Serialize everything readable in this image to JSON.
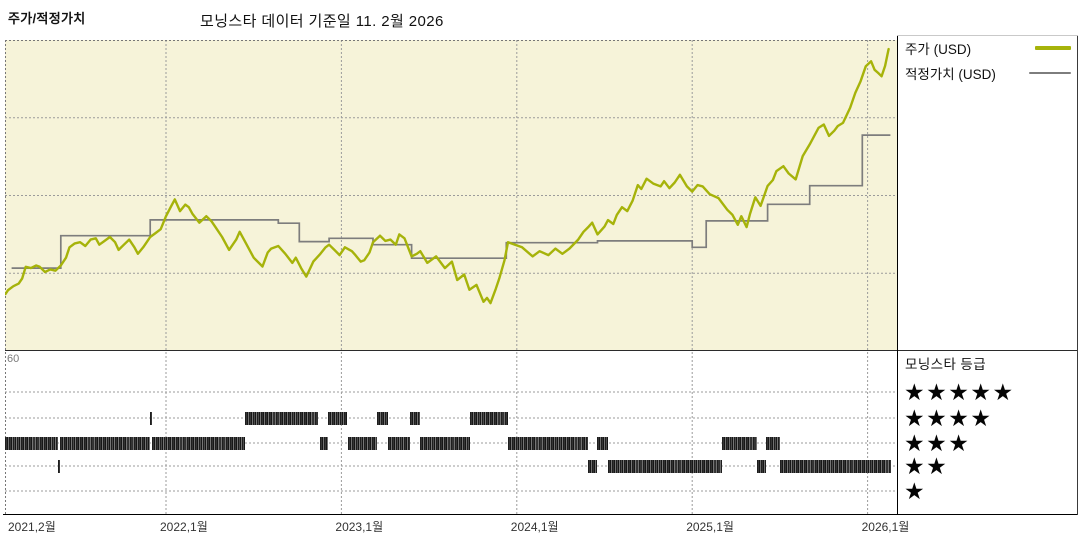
{
  "header": {
    "title": "주가/적정가치",
    "subtitle": "모닝스타 데이터 기준일 11. 2월 2026"
  },
  "legend": {
    "items": [
      {
        "label": "주가 (USD)"
      },
      {
        "label": "적정가치 (USD)"
      }
    ]
  },
  "rating_panel": {
    "title": "모닝스타 등급",
    "star_char": "★",
    "rows": [
      5,
      4,
      3,
      2,
      1
    ]
  },
  "colors": {
    "price": "#a6b30a",
    "fair_value": "#7d7d7d",
    "chart_bg": "#f6f3d9",
    "grid": "#9b9b9b",
    "border_dash": "#777777",
    "axis_text": "#7b7b7b",
    "tick_text": "#333333",
    "rating_tick": "#1e1e1e",
    "star": "#040404"
  },
  "chart_data": {
    "type": "line",
    "title": "주가/적정가치",
    "x_axis": {
      "ticks": [
        {
          "label": "2021,2월",
          "t": 2021.085
        },
        {
          "label": "2022,1월",
          "t": 2022.0
        },
        {
          "label": "2023,1월",
          "t": 2023.0
        },
        {
          "label": "2024,1월",
          "t": 2024.0
        },
        {
          "label": "2025,1월",
          "t": 2025.0
        },
        {
          "label": "2026,1월",
          "t": 2026.0
        }
      ]
    },
    "y_axis": {
      "ticks": [
        180,
        150,
        120,
        90,
        60
      ],
      "range": [
        60,
        180
      ]
    },
    "series": [
      {
        "name": "주가 (USD)",
        "type": "line",
        "points": [
          [
            2021.085,
            82
          ],
          [
            2021.1,
            83.5
          ],
          [
            2021.13,
            85
          ],
          [
            2021.16,
            86
          ],
          [
            2021.18,
            88
          ],
          [
            2021.2,
            92.5
          ],
          [
            2021.23,
            92
          ],
          [
            2021.26,
            93
          ],
          [
            2021.28,
            92.5
          ],
          [
            2021.31,
            90.5
          ],
          [
            2021.34,
            91.5
          ],
          [
            2021.37,
            91
          ],
          [
            2021.4,
            93
          ],
          [
            2021.43,
            96
          ],
          [
            2021.45,
            100
          ],
          [
            2021.48,
            101.5
          ],
          [
            2021.51,
            102
          ],
          [
            2021.54,
            100.5
          ],
          [
            2021.57,
            103
          ],
          [
            2021.6,
            103.5
          ],
          [
            2021.62,
            101
          ],
          [
            2021.65,
            102.5
          ],
          [
            2021.68,
            104
          ],
          [
            2021.71,
            102
          ],
          [
            2021.73,
            99
          ],
          [
            2021.76,
            101
          ],
          [
            2021.79,
            103
          ],
          [
            2021.82,
            100
          ],
          [
            2021.84,
            97.5
          ],
          [
            2021.87,
            100
          ],
          [
            2021.89,
            102
          ],
          [
            2021.91,
            104
          ],
          [
            2021.94,
            105.5
          ],
          [
            2021.97,
            107
          ],
          [
            2022.0,
            112
          ],
          [
            2022.03,
            116
          ],
          [
            2022.05,
            118.5
          ],
          [
            2022.08,
            114
          ],
          [
            2022.11,
            116.5
          ],
          [
            2022.13,
            115.5
          ],
          [
            2022.15,
            113
          ],
          [
            2022.19,
            109.5
          ],
          [
            2022.23,
            112
          ],
          [
            2022.26,
            110
          ],
          [
            2022.28,
            108
          ],
          [
            2022.32,
            104
          ],
          [
            2022.36,
            99
          ],
          [
            2022.4,
            103
          ],
          [
            2022.42,
            106
          ],
          [
            2022.46,
            101
          ],
          [
            2022.5,
            96
          ],
          [
            2022.55,
            92.6
          ],
          [
            2022.58,
            98
          ],
          [
            2022.6,
            99.5
          ],
          [
            2022.64,
            100.5
          ],
          [
            2022.68,
            97.5
          ],
          [
            2022.72,
            94
          ],
          [
            2022.74,
            96
          ],
          [
            2022.77,
            92
          ],
          [
            2022.8,
            88.7
          ],
          [
            2022.84,
            94.5
          ],
          [
            2022.88,
            97.5
          ],
          [
            2022.91,
            100
          ],
          [
            2022.93,
            101
          ],
          [
            2022.96,
            99
          ],
          [
            2022.99,
            97
          ],
          [
            2023.02,
            100
          ],
          [
            2023.06,
            98.5
          ],
          [
            2023.08,
            97
          ],
          [
            2023.11,
            94.5
          ],
          [
            2023.13,
            95
          ],
          [
            2023.16,
            98
          ],
          [
            2023.18,
            102
          ],
          [
            2023.22,
            104.5
          ],
          [
            2023.25,
            102.5
          ],
          [
            2023.28,
            103
          ],
          [
            2023.31,
            101
          ],
          [
            2023.33,
            105
          ],
          [
            2023.36,
            103.5
          ],
          [
            2023.4,
            96.5
          ],
          [
            2023.43,
            97.5
          ],
          [
            2023.45,
            98.5
          ],
          [
            2023.49,
            94
          ],
          [
            2023.54,
            96.5
          ],
          [
            2023.59,
            92
          ],
          [
            2023.63,
            94.5
          ],
          [
            2023.66,
            87.4
          ],
          [
            2023.7,
            89.5
          ],
          [
            2023.73,
            83.6
          ],
          [
            2023.77,
            85.5
          ],
          [
            2023.81,
            79
          ],
          [
            2023.83,
            80.5
          ],
          [
            2023.85,
            78.5
          ],
          [
            2023.88,
            84
          ],
          [
            2023.9,
            88
          ],
          [
            2023.93,
            95
          ],
          [
            2023.95,
            102
          ],
          [
            2023.99,
            101
          ],
          [
            2024.03,
            100
          ],
          [
            2024.09,
            96.5
          ],
          [
            2024.13,
            98.5
          ],
          [
            2024.18,
            97
          ],
          [
            2024.22,
            99.5
          ],
          [
            2024.26,
            97.5
          ],
          [
            2024.3,
            99.5
          ],
          [
            2024.35,
            103
          ],
          [
            2024.38,
            106
          ],
          [
            2024.41,
            108
          ],
          [
            2024.43,
            109.5
          ],
          [
            2024.46,
            105
          ],
          [
            2024.5,
            108
          ],
          [
            2024.52,
            110.5
          ],
          [
            2024.55,
            109
          ],
          [
            2024.57,
            112.5
          ],
          [
            2024.6,
            115.5
          ],
          [
            2024.63,
            114
          ],
          [
            2024.66,
            118
          ],
          [
            2024.69,
            124
          ],
          [
            2024.71,
            122.5
          ],
          [
            2024.74,
            126.5
          ],
          [
            2024.78,
            124.5
          ],
          [
            2024.82,
            123.5
          ],
          [
            2024.84,
            125.5
          ],
          [
            2024.87,
            122.8
          ],
          [
            2024.9,
            125
          ],
          [
            2024.93,
            128
          ],
          [
            2024.97,
            123.5
          ],
          [
            2025.0,
            121.5
          ],
          [
            2025.03,
            124
          ],
          [
            2025.06,
            123.5
          ],
          [
            2025.1,
            120.5
          ],
          [
            2025.15,
            119
          ],
          [
            2025.2,
            114.5
          ],
          [
            2025.23,
            112.5
          ],
          [
            2025.26,
            108.7
          ],
          [
            2025.28,
            112
          ],
          [
            2025.31,
            107.8
          ],
          [
            2025.33,
            113
          ],
          [
            2025.36,
            119.3
          ],
          [
            2025.39,
            116
          ],
          [
            2025.43,
            123.7
          ],
          [
            2025.46,
            126
          ],
          [
            2025.48,
            129.4
          ],
          [
            2025.52,
            131.3
          ],
          [
            2025.55,
            128.5
          ],
          [
            2025.59,
            126.2
          ],
          [
            2025.63,
            135.2
          ],
          [
            2025.67,
            139.7
          ],
          [
            2025.72,
            146.1
          ],
          [
            2025.75,
            147.4
          ],
          [
            2025.78,
            143
          ],
          [
            2025.81,
            145
          ],
          [
            2025.83,
            146.8
          ],
          [
            2025.86,
            148
          ],
          [
            2025.9,
            153.8
          ],
          [
            2025.93,
            159.6
          ],
          [
            2025.96,
            164.1
          ],
          [
            2025.99,
            169.9
          ],
          [
            2026.02,
            171.8
          ],
          [
            2026.04,
            168.5
          ],
          [
            2026.06,
            167.3
          ],
          [
            2026.08,
            166
          ],
          [
            2026.1,
            170
          ],
          [
            2026.12,
            176.5
          ]
        ]
      },
      {
        "name": "적정가치 (USD)",
        "type": "step",
        "end": 2026.13,
        "points": [
          [
            2021.12,
            92
          ],
          [
            2021.4,
            104.5
          ],
          [
            2021.91,
            110.6
          ],
          [
            2022.64,
            109.3
          ],
          [
            2022.76,
            102.2
          ],
          [
            2022.93,
            103.5
          ],
          [
            2023.18,
            101
          ],
          [
            2023.4,
            95.8
          ],
          [
            2023.94,
            101.8
          ],
          [
            2024.46,
            102.5
          ],
          [
            2025.0,
            100
          ],
          [
            2025.08,
            110.2
          ],
          [
            2025.43,
            116.6
          ],
          [
            2025.67,
            123.8
          ],
          [
            2025.97,
            143.3
          ]
        ]
      }
    ],
    "ratings": {
      "rows": [
        5,
        4,
        3,
        2,
        1
      ],
      "segments": [
        [
          3,
          2021.082,
          2021.386
        ],
        [
          2,
          2021.386,
          2021.398
        ],
        [
          3,
          2021.398,
          2021.91
        ],
        [
          4,
          2021.91,
          2021.922
        ],
        [
          3,
          2021.922,
          2022.45
        ],
        [
          4,
          2022.45,
          2022.866
        ],
        [
          3,
          2022.878,
          2022.924
        ],
        [
          4,
          2022.924,
          2023.032
        ],
        [
          3,
          2023.038,
          2023.203
        ],
        [
          4,
          2023.203,
          2023.266
        ],
        [
          3,
          2023.266,
          2023.391
        ],
        [
          4,
          2023.391,
          2023.448
        ],
        [
          3,
          2023.448,
          2023.733
        ],
        [
          4,
          2023.733,
          2023.95
        ],
        [
          3,
          2023.95,
          2024.406
        ],
        [
          2,
          2024.406,
          2024.457
        ],
        [
          3,
          2024.457,
          2024.52
        ],
        [
          2,
          2024.52,
          2025.17
        ],
        [
          3,
          2025.17,
          2025.37
        ],
        [
          2,
          2025.37,
          2025.421
        ],
        [
          3,
          2025.421,
          2025.501
        ],
        [
          2,
          2025.501,
          2026.134
        ]
      ]
    }
  }
}
